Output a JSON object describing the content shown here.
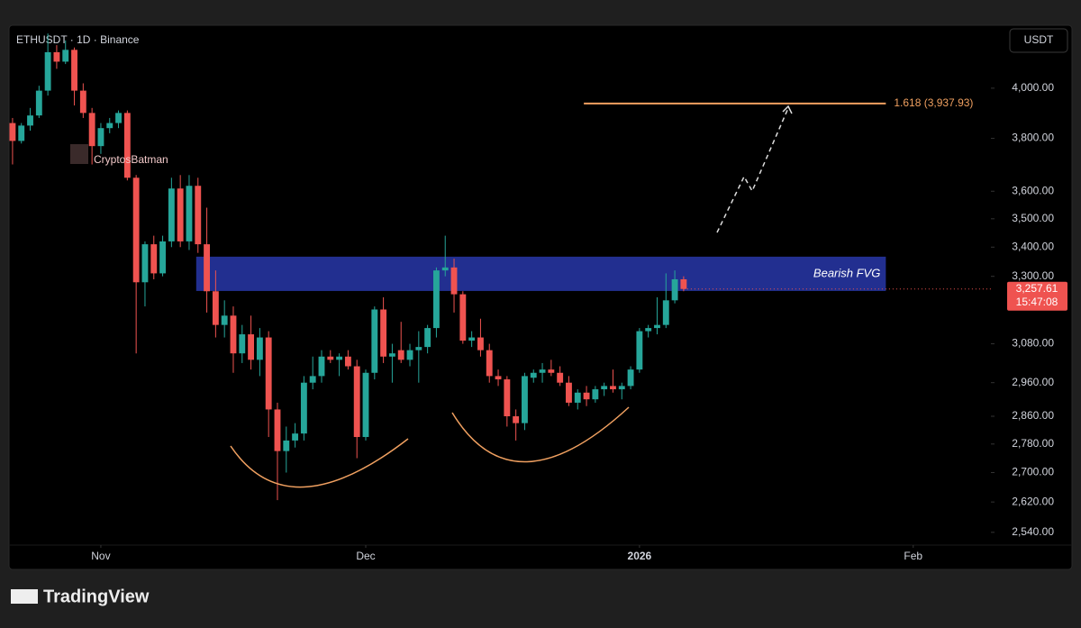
{
  "chart_data": {
    "type": "candlestick",
    "title": "ETHUSDT · 1D · Binance",
    "currency_button": "USDT",
    "watermark": "CryptosBatman",
    "brand": "TradingView",
    "log_scale": true,
    "up_color": "#26a69a",
    "down_color": "#ef5350",
    "open": [
      3860,
      3790,
      3850,
      3890,
      3990,
      4150,
      4110,
      4160,
      3990,
      3900,
      3770,
      3840,
      3860,
      3900,
      3650,
      3280,
      3410,
      3310,
      3420,
      3610,
      3420,
      3620,
      3410,
      3250,
      3140,
      3170,
      3050,
      3110,
      3030,
      3100,
      2880,
      2760,
      2790,
      2810,
      2960,
      2980,
      3040,
      3030,
      3040,
      3010,
      2800,
      2990,
      3190,
      3040,
      3060,
      3030,
      3060,
      3070,
      3130,
      3320,
      3330,
      3240,
      3090,
      3100,
      3060,
      2980,
      2970,
      2860,
      2840,
      2975,
      2990,
      3000,
      2990,
      2960,
      2900,
      2930,
      2910,
      2940,
      2950,
      2940,
      2950,
      3000,
      3120,
      3130,
      3140,
      3220,
      3290
    ],
    "high": [
      3880,
      3860,
      3920,
      4010,
      4230,
      4180,
      4200,
      4170,
      4020,
      3920,
      3860,
      3880,
      3910,
      3910,
      3660,
      3420,
      3440,
      3440,
      3650,
      3660,
      3660,
      3650,
      3540,
      3320,
      3220,
      3200,
      3140,
      3170,
      3130,
      3120,
      2900,
      2830,
      2840,
      2980,
      3040,
      3060,
      3060,
      3050,
      3060,
      3030,
      3000,
      3200,
      3230,
      3080,
      3150,
      3080,
      3120,
      3140,
      3330,
      3440,
      3360,
      3250,
      3120,
      3160,
      3080,
      3000,
      2980,
      2880,
      2990,
      3000,
      3020,
      3030,
      3010,
      2980,
      2940,
      2950,
      2950,
      2960,
      3000,
      2960,
      3010,
      3130,
      3140,
      3230,
      3310,
      3320,
      3300
    ],
    "low": [
      3700,
      3780,
      3830,
      3880,
      3970,
      4080,
      4100,
      3930,
      3880,
      3700,
      3740,
      3820,
      3840,
      3640,
      3050,
      3200,
      3290,
      3300,
      3400,
      3400,
      3390,
      3380,
      3180,
      3100,
      3100,
      2990,
      3020,
      3000,
      2980,
      2800,
      2625,
      2700,
      2770,
      2790,
      2940,
      2960,
      3020,
      2980,
      3000,
      2740,
      2790,
      2970,
      3020,
      2960,
      3020,
      3010,
      2960,
      3050,
      3100,
      3300,
      3180,
      3080,
      3070,
      3040,
      2960,
      2950,
      2830,
      2790,
      2820,
      2960,
      2960,
      2980,
      2950,
      2890,
      2880,
      2890,
      2900,
      2920,
      2930,
      2910,
      2940,
      2990,
      3100,
      3110,
      3130,
      3210,
      3250
    ],
    "close": [
      3790,
      3850,
      3890,
      3990,
      4150,
      4110,
      4160,
      3990,
      3900,
      3770,
      3840,
      3860,
      3900,
      3650,
      3280,
      3410,
      3310,
      3420,
      3610,
      3420,
      3620,
      3410,
      3250,
      3140,
      3170,
      3050,
      3110,
      3030,
      3100,
      2880,
      2760,
      2790,
      2810,
      2960,
      2980,
      3040,
      3030,
      3040,
      3010,
      2800,
      2990,
      3190,
      3040,
      3050,
      3030,
      3060,
      3070,
      3130,
      3320,
      3330,
      3240,
      3090,
      3100,
      3060,
      2980,
      2970,
      2860,
      2840,
      2980,
      2990,
      3000,
      2990,
      2960,
      2900,
      2930,
      2910,
      2940,
      2950,
      2940,
      2950,
      3000,
      3120,
      3130,
      3140,
      3220,
      3290,
      3257.61
    ],
    "last_price_label": "3,257.61",
    "countdown": "15:47:08",
    "xlim": [
      -0.4,
      110.8
    ],
    "xticks": [
      {
        "value": 10,
        "label": "Nov"
      },
      {
        "value": 40,
        "label": "Dec"
      },
      {
        "value": 71,
        "label": "2026"
      },
      {
        "value": 102,
        "label": "Feb"
      }
    ],
    "ylim": [
      2507,
      4266
    ],
    "yticks": [
      {
        "value": 2540,
        "label": "2,540.00"
      },
      {
        "value": 2620,
        "label": "2,620.00"
      },
      {
        "value": 2700,
        "label": "2,700.00"
      },
      {
        "value": 2780,
        "label": "2,780.00"
      },
      {
        "value": 2860,
        "label": "2,860.00"
      },
      {
        "value": 2960,
        "label": "2,960.00"
      },
      {
        "value": 3080,
        "label": "3,080.00"
      },
      {
        "value": 3300,
        "label": "3,300.00"
      },
      {
        "value": 3400,
        "label": "3,400.00"
      },
      {
        "value": 3500,
        "label": "3,500.00"
      },
      {
        "value": 3600,
        "label": "3,600.00"
      },
      {
        "value": 3800,
        "label": "3,800.00"
      },
      {
        "value": 4000,
        "label": "4,000.00"
      }
    ],
    "zone": {
      "label": "Bearish FVG",
      "top": 3367,
      "bottom": 3251,
      "x": [
        20.8,
        98.9
      ],
      "color": "#2634a0"
    },
    "fib_level": {
      "value": 3937.93,
      "label": "1.618 (3,937.93)",
      "x": [
        64.7,
        98.9
      ],
      "color": "#f0a060"
    }
  }
}
